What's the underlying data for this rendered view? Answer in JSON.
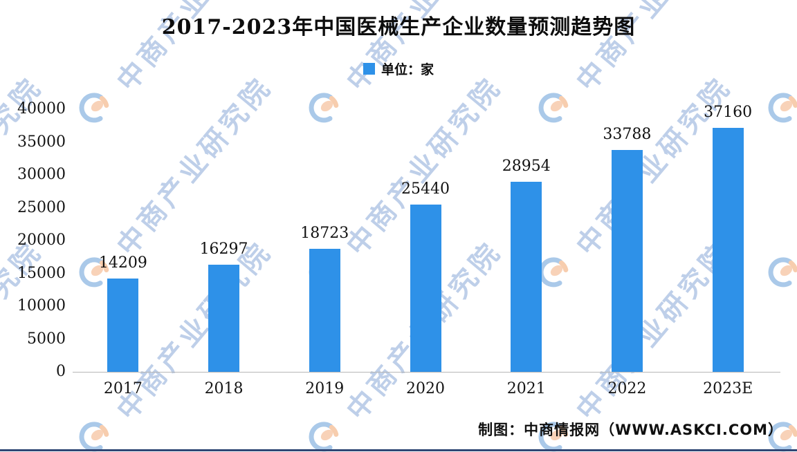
{
  "title": "2017-2023年中国医械生产企业数量预测趋势图",
  "legend": {
    "label": "单位：家",
    "swatch_color": "#2e91e8"
  },
  "watermark": {
    "text": "中商产业研究院",
    "logo_icon": "askci-circle-logo"
  },
  "footer": {
    "credit": "制图：中商情报网（WWW.ASKCI.COM）"
  },
  "chart_data": {
    "type": "bar",
    "title": "2017-2023年中国医械生产企业数量预测趋势图",
    "unit_label": "单位：家",
    "categories": [
      "2017",
      "2018",
      "2019",
      "2020",
      "2021",
      "2022",
      "2023E"
    ],
    "values": [
      14209,
      16297,
      18723,
      25440,
      28954,
      33788,
      37160
    ],
    "xlabel": "",
    "ylabel": "",
    "ylim": [
      0,
      40000
    ],
    "yticks": [
      0,
      5000,
      10000,
      15000,
      20000,
      25000,
      30000,
      35000,
      40000
    ],
    "bar_color": "#2e91e8",
    "value_labels": true,
    "grid": false,
    "legend_position": "top-center"
  }
}
